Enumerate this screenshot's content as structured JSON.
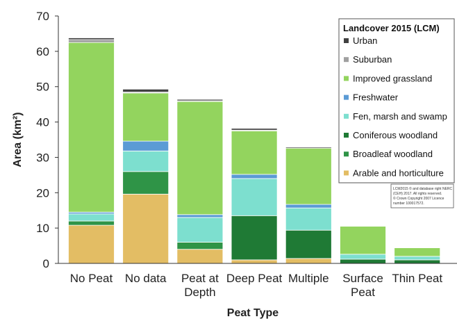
{
  "chart_data": {
    "type": "bar",
    "stacked": true,
    "categories": [
      "No Peat",
      "No data",
      "Peat at Depth",
      "Deep Peat",
      "Multiple",
      "Surface Peat",
      "Thin Peat"
    ],
    "category_lines": [
      [
        "No Peat"
      ],
      [
        "No data"
      ],
      [
        "Peat at",
        "Depth"
      ],
      [
        "Deep Peat"
      ],
      [
        "Multiple"
      ],
      [
        "Surface",
        "Peat"
      ],
      [
        "Thin Peat"
      ]
    ],
    "series": [
      {
        "name": "Arable and horticulture",
        "color": "#e3bd64",
        "values": [
          10.8,
          19.6,
          4.0,
          1.0,
          1.4,
          0.0,
          0.0
        ]
      },
      {
        "name": "Broadleaf woodland",
        "color": "#2f9447",
        "values": [
          1.2,
          6.4,
          2.0,
          0.0,
          0.0,
          0.0,
          0.0
        ]
      },
      {
        "name": "Coniferous woodland",
        "color": "#1f7a35",
        "values": [
          0.0,
          0.0,
          0.0,
          12.5,
          8.0,
          1.2,
          1.0
        ]
      },
      {
        "name": "Fen, marsh and swamp",
        "color": "#7ddfcf",
        "values": [
          2.0,
          5.8,
          7.0,
          10.5,
          6.3,
          1.4,
          1.0
        ]
      },
      {
        "name": "Freshwater",
        "color": "#5b9bd5",
        "values": [
          0.5,
          2.8,
          0.8,
          1.2,
          1.0,
          0.0,
          0.0
        ]
      },
      {
        "name": "Improved grassland",
        "color": "#93d45e",
        "values": [
          48.0,
          13.6,
          32.0,
          12.3,
          15.9,
          7.9,
          2.4
        ]
      },
      {
        "name": "Suburban",
        "color": "#a0a0a0",
        "values": [
          0.8,
          0.3,
          0.2,
          0.2,
          0.0,
          0.0,
          0.0
        ]
      },
      {
        "name": "Urban",
        "color": "#404040",
        "values": [
          0.5,
          0.8,
          0.4,
          0.5,
          0.3,
          0.0,
          0.0
        ]
      }
    ],
    "xlabel": "Peat Type",
    "ylabel": "Area (km²)",
    "ylim": [
      0,
      70
    ],
    "yticks": [
      0,
      10,
      20,
      30,
      40,
      50,
      60,
      70
    ],
    "legend": {
      "title": "Landcover 2015 (LCM)",
      "placement": "top-right",
      "order": [
        "Urban",
        "Suburban",
        "Improved grassland",
        "Freshwater",
        "Fen, marsh and swamp",
        "Coniferous woodland",
        "Broadleaf woodland",
        "Arable and horticulture"
      ]
    },
    "annotation": [
      "LCM2015 © and database right NERC",
      "(CEH) 2017. All rights reserved.",
      "© Crown Copyright 2007 Licence",
      "number 100017572."
    ],
    "grid": false
  }
}
